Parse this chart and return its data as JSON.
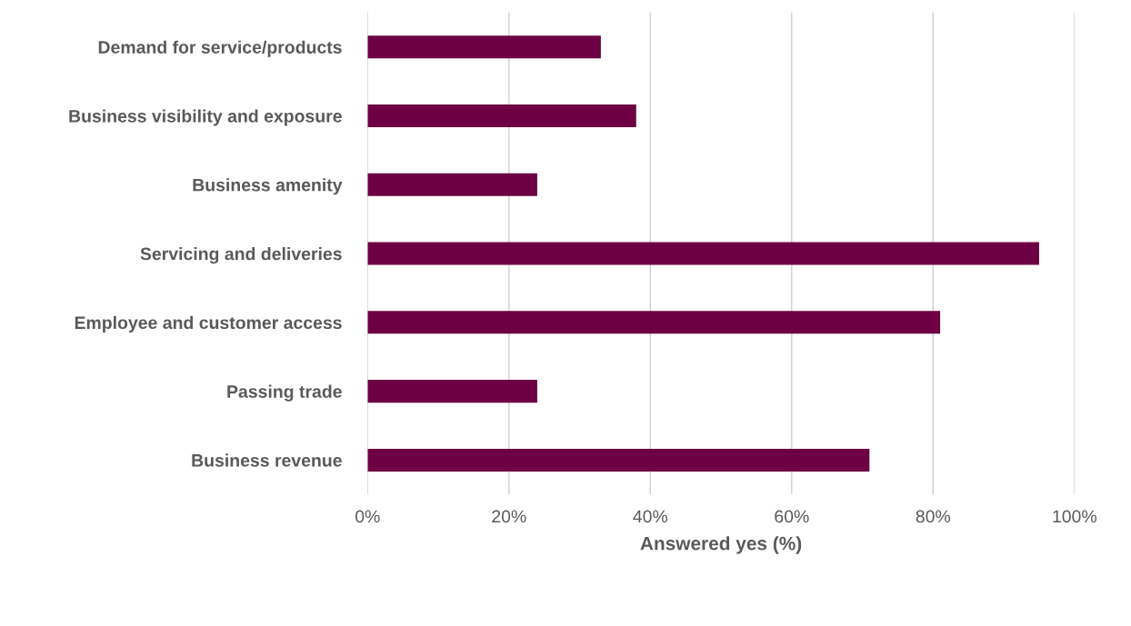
{
  "chart_data": {
    "type": "bar",
    "orientation": "horizontal",
    "categories": [
      "Demand for service/products",
      "Business visibility and exposure",
      "Business amenity",
      "Servicing and deliveries",
      "Employee and customer access",
      "Passing trade",
      "Business revenue"
    ],
    "values": [
      33,
      38,
      24,
      95,
      81,
      24,
      71
    ],
    "color": "#6d0042",
    "xlabel": "Answered yes (%)",
    "xlim": [
      0,
      100
    ],
    "xticks": [
      {
        "value": 0,
        "label": "0%"
      },
      {
        "value": 20,
        "label": "20%"
      },
      {
        "value": 40,
        "label": "40%"
      },
      {
        "value": 60,
        "label": "60%"
      },
      {
        "value": 80,
        "label": "80%"
      },
      {
        "value": 100,
        "label": "100%"
      }
    ],
    "grid": "x"
  }
}
